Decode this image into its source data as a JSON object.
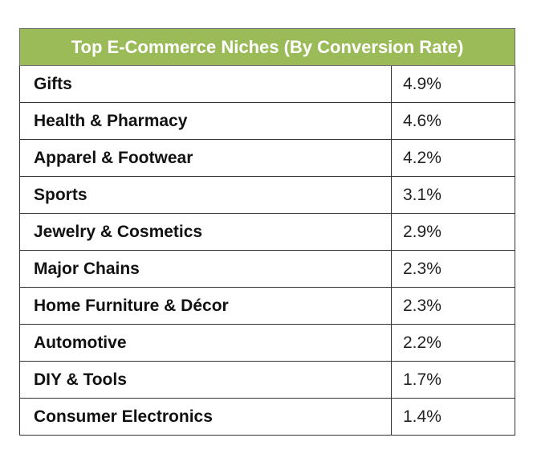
{
  "chart_data": {
    "type": "table",
    "title": "Top E-Commerce Niches (By Conversion Rate)",
    "rows": [
      {
        "niche": "Gifts",
        "rate": "4.9%"
      },
      {
        "niche": "Health & Pharmacy",
        "rate": "4.6%"
      },
      {
        "niche": "Apparel & Footwear",
        "rate": "4.2%"
      },
      {
        "niche": "Sports",
        "rate": "3.1%"
      },
      {
        "niche": "Jewelry & Cosmetics",
        "rate": "2.9%"
      },
      {
        "niche": "Major Chains",
        "rate": "2.3%"
      },
      {
        "niche": "Home Furniture & Décor",
        "rate": "2.3%"
      },
      {
        "niche": "Automotive",
        "rate": "2.2%"
      },
      {
        "niche": "DIY & Tools",
        "rate": "1.7%"
      },
      {
        "niche": "Consumer Electronics",
        "rate": "1.4%"
      }
    ],
    "colors": {
      "header_background": "#9bbb59",
      "header_text": "#ffffff"
    }
  }
}
